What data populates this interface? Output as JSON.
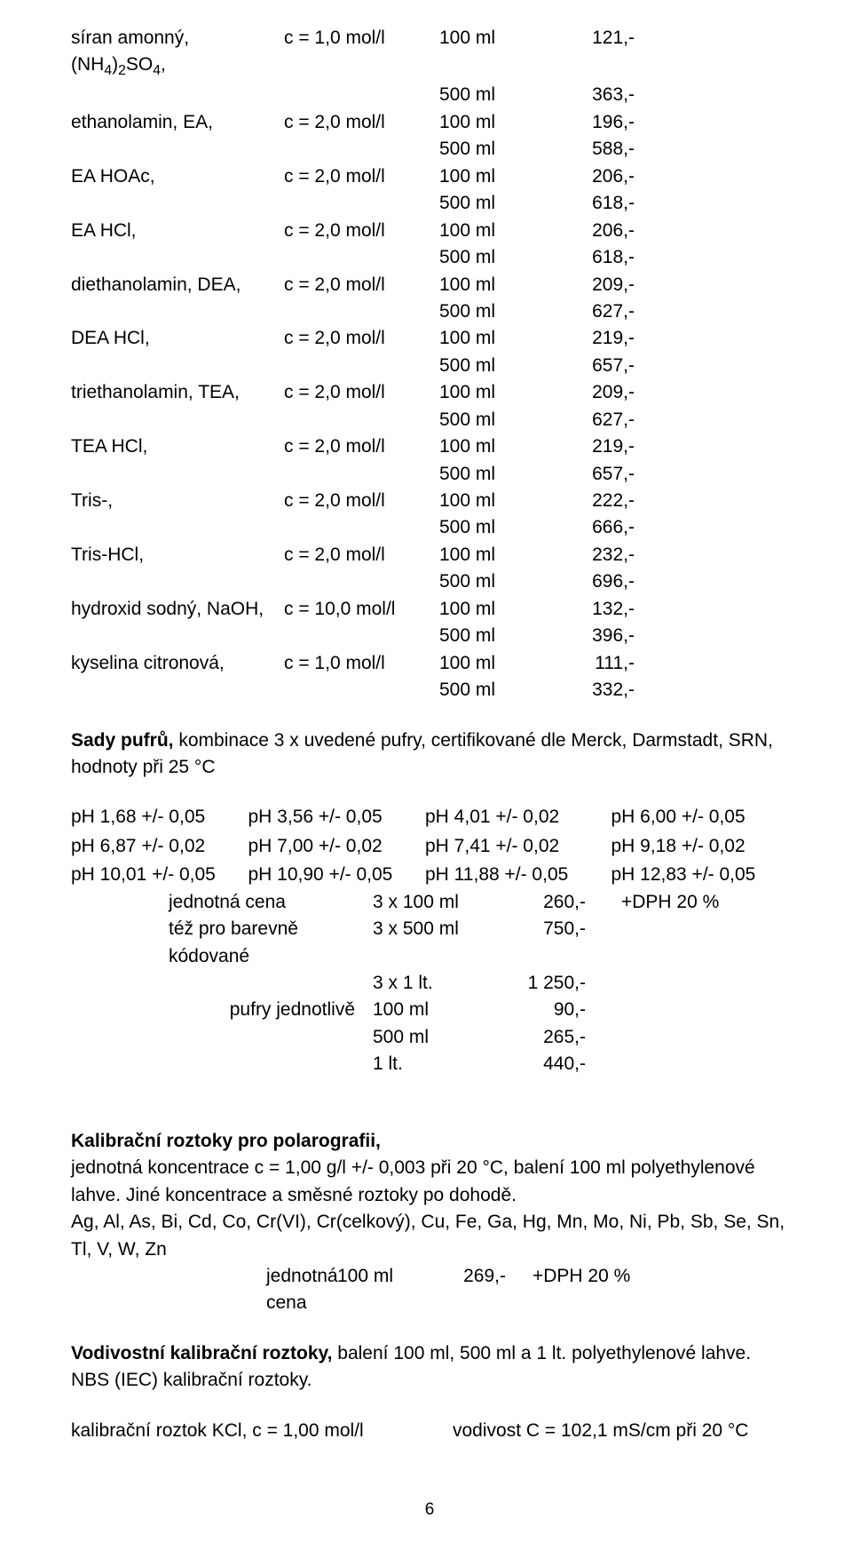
{
  "table": {
    "rows": [
      {
        "name": "síran amonný, (NH₄)₂SO₄,",
        "conc": "c = 1,0 mol/l",
        "lines": [
          {
            "vol": "100 ml",
            "price": "121,-"
          },
          {
            "vol": "500 ml",
            "price": "363,-"
          }
        ]
      },
      {
        "name": "ethanolamin, EA,",
        "conc": "c = 2,0 mol/l",
        "lines": [
          {
            "vol": "100 ml",
            "price": "196,-"
          },
          {
            "vol": "500 ml",
            "price": "588,-"
          }
        ]
      },
      {
        "name": "EA HOAc,",
        "conc": "c = 2,0 mol/l",
        "lines": [
          {
            "vol": "100 ml",
            "price": "206,-"
          },
          {
            "vol": "500 ml",
            "price": "618,-"
          }
        ]
      },
      {
        "name": "EA HCl,",
        "conc": "c = 2,0 mol/l",
        "lines": [
          {
            "vol": "100 ml",
            "price": "206,-"
          },
          {
            "vol": "500 ml",
            "price": "618,-"
          }
        ]
      },
      {
        "name": "diethanolamin, DEA,",
        "conc": "c = 2,0 mol/l",
        "lines": [
          {
            "vol": "100 ml",
            "price": "209,-"
          },
          {
            "vol": "500 ml",
            "price": "627,-"
          }
        ]
      },
      {
        "name": "DEA HCl,",
        "conc": "c = 2,0 mol/l",
        "lines": [
          {
            "vol": "100 ml",
            "price": "219,-"
          },
          {
            "vol": "500 ml",
            "price": "657,-"
          }
        ]
      },
      {
        "name": "triethanolamin, TEA,",
        "conc": "c = 2,0 mol/l",
        "lines": [
          {
            "vol": "100 ml",
            "price": "209,-"
          },
          {
            "vol": "500 ml",
            "price": "627,-"
          }
        ]
      },
      {
        "name": "TEA HCl,",
        "conc": "c = 2,0 mol/l",
        "lines": [
          {
            "vol": "100 ml",
            "price": "219,-"
          },
          {
            "vol": "500 ml",
            "price": "657,-"
          }
        ]
      },
      {
        "name": "Tris-,",
        "conc": "c = 2,0 mol/l",
        "lines": [
          {
            "vol": "100 ml",
            "price": "222,-"
          },
          {
            "vol": "500 ml",
            "price": "666,-"
          }
        ]
      },
      {
        "name": "Tris-HCl,",
        "conc": "c = 2,0 mol/l",
        "lines": [
          {
            "vol": "100 ml",
            "price": "232,-"
          },
          {
            "vol": "500 ml",
            "price": "696,-"
          }
        ]
      },
      {
        "name": "hydroxid sodný, NaOH,",
        "conc": "c = 10,0 mol/l",
        "lines": [
          {
            "vol": "100 ml",
            "price": "132,-"
          },
          {
            "vol": "500 ml",
            "price": "396,-"
          }
        ]
      },
      {
        "name": "kyselina citronová,",
        "conc": "c = 1,0 mol/l",
        "lines": [
          {
            "vol": "100 ml",
            "price": "111,-"
          },
          {
            "vol": "500 ml",
            "price": "332,-"
          }
        ]
      }
    ]
  },
  "sady": {
    "heading_bold": "Sady pufrů,",
    "heading_rest": " kombinace 3 x uvedené pufry, certifikované dle Merck, Darmstadt, SRN, hodnoty při 25 °C",
    "ph_table": [
      [
        "pH 1,68 +/- 0,05",
        "pH 3,56 +/- 0,05",
        "pH 4,01 +/- 0,02",
        "pH 6,00 +/- 0,05"
      ],
      [
        "pH 6,87 +/- 0,02",
        "pH 7,00 +/- 0,02",
        "pH 7,41 +/- 0,02",
        "pH 9,18 +/- 0,02"
      ],
      [
        "pH 10,01 +/- 0,05",
        "pH 10,90 +/- 0,05",
        "pH 11,88 +/- 0,05",
        "pH 12,83 +/- 0,05"
      ]
    ],
    "prices": [
      {
        "label": "jednotná cena",
        "vol": "3 x 100 ml",
        "price": "260,-",
        "dph": "+DPH 20 %"
      },
      {
        "label": "též pro barevně kódované",
        "vol": "3 x 500 ml",
        "price": "750,-",
        "dph": ""
      },
      {
        "label": "",
        "vol": "3 x 1 lt.",
        "price": "1 250,-",
        "dph": ""
      }
    ],
    "single_label": "pufry jednotlivě",
    "single": [
      {
        "vol": "100 ml",
        "price": "90,-"
      },
      {
        "vol": "500 ml",
        "price": "265,-"
      },
      {
        "vol": "1 lt.",
        "price": "440,-"
      }
    ]
  },
  "polar": {
    "heading": "Kalibrační roztoky pro polarografii,",
    "p1": "jednotná koncentrace c = 1,00 g/l  +/- 0,003 při 20 °C, balení 100 ml polyethylenové lahve. Jiné koncentrace a směsné roztoky po dohodě.",
    "p2": "Ag, Al, As, Bi, Cd, Co, Cr(VI), Cr(celkový), Cu, Fe, Ga, Hg, Mn, Mo, Ni, Pb, Sb, Se, Sn, Tl, V, W, Zn",
    "price_row": {
      "label": "jednotná cena",
      "vol": "100 ml",
      "price": "269,-",
      "dph": "+DPH 20 %"
    }
  },
  "vodiv": {
    "heading_bold": "Vodivostní kalibrační roztoky,",
    "heading_rest": " balení 100 ml, 500 ml a 1 lt. polyethylenové lahve.",
    "line2": "NBS (IEC) kalibrační roztoky."
  },
  "kcl": {
    "left": "kalibrační roztok KCl, c = 1,00 mol/l",
    "right": "vodivost C = 102,1 mS/cm při 20 °C"
  },
  "page_number": "6"
}
